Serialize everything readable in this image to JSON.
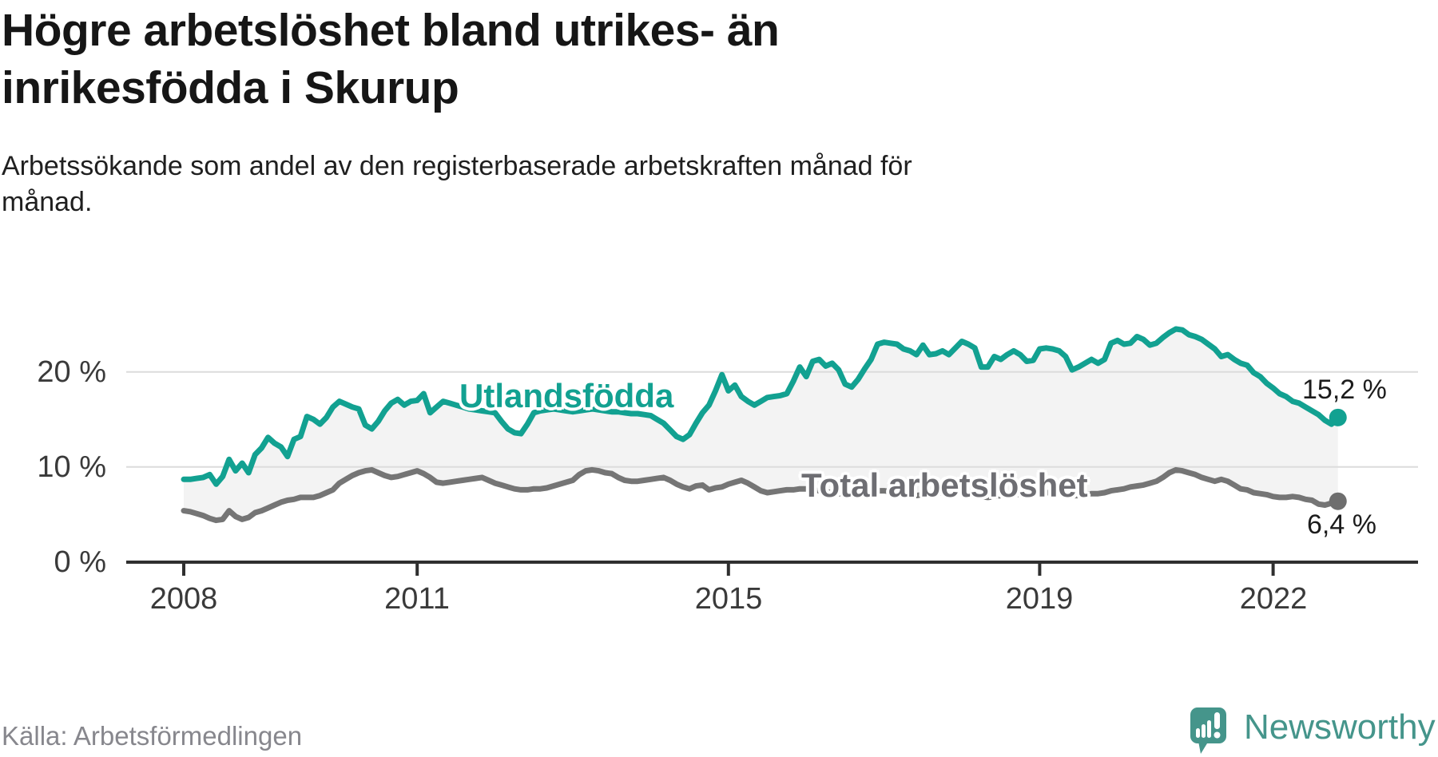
{
  "header": {
    "title_line1": "Högre arbetslöshet bland utrikes- än",
    "title_line2": "inrikesfödda i Skurup",
    "subtitle_line1": "Arbetssökande som andel av den registerbaserade arbetskraften månad för",
    "subtitle_line2": "månad."
  },
  "chart_data": {
    "type": "line",
    "title": "Högre arbetslöshet bland utrikes- än inrikesfödda i Skurup",
    "subtitle": "Arbetssökande som andel av den registerbaserade arbetskraften månad för månad.",
    "x_unit": "month",
    "x_start": "2008-01",
    "x_end": "2022-11",
    "ylim": [
      0,
      26
    ],
    "grid": "horizontal",
    "legend_position": "inline-labels",
    "fill_between_series": true,
    "y_tick_labels": [
      "20 %",
      "10 %",
      "0 %"
    ],
    "y_tick_values": [
      20,
      10,
      0
    ],
    "x_tick_labels": [
      "2008",
      "2011",
      "2015",
      "2019",
      "2022"
    ],
    "x_tick_years": [
      2008,
      2011,
      2015,
      2019,
      2022
    ],
    "series": [
      {
        "name": "Utlandsfödda",
        "color": "#12a191",
        "end_label": "15,2 %",
        "end_value": 15.2,
        "values": [
          8.7,
          8.7,
          8.8,
          8.9,
          9.2,
          8.2,
          9.0,
          10.8,
          9.6,
          10.4,
          9.4,
          11.3,
          12.0,
          13.1,
          12.5,
          12.1,
          11.1,
          12.9,
          13.2,
          15.3,
          15.0,
          14.5,
          15.2,
          16.3,
          16.9,
          16.6,
          16.3,
          16.1,
          14.4,
          14.0,
          14.8,
          15.9,
          16.7,
          17.1,
          16.5,
          16.9,
          17.0,
          17.7,
          15.7,
          16.3,
          16.9,
          16.7,
          16.5,
          16.3,
          16.1,
          16.0,
          15.9,
          15.8,
          15.7,
          14.8,
          14.0,
          13.6,
          13.5,
          14.5,
          15.7,
          15.9,
          16.0,
          16.1,
          16.0,
          15.9,
          15.8,
          15.9,
          16.0,
          16.1,
          16.0,
          15.9,
          15.8,
          15.8,
          15.7,
          15.6,
          15.6,
          15.5,
          15.4,
          15.0,
          14.6,
          13.9,
          13.2,
          12.9,
          13.4,
          14.6,
          15.7,
          16.5,
          18.0,
          19.7,
          18.0,
          18.6,
          17.4,
          16.9,
          16.5,
          16.9,
          17.3,
          17.4,
          17.5,
          17.7,
          19.0,
          20.5,
          19.5,
          21.1,
          21.3,
          20.6,
          20.9,
          20.2,
          18.7,
          18.4,
          19.2,
          20.3,
          21.3,
          22.9,
          23.1,
          23.0,
          22.9,
          22.4,
          22.2,
          21.8,
          22.8,
          21.8,
          21.9,
          22.2,
          21.8,
          22.5,
          23.2,
          22.9,
          22.5,
          20.5,
          20.5,
          21.6,
          21.3,
          21.8,
          22.2,
          21.8,
          21.1,
          21.2,
          22.4,
          22.5,
          22.4,
          22.2,
          21.6,
          20.2,
          20.5,
          20.9,
          21.3,
          20.9,
          21.3,
          23.0,
          23.3,
          22.9,
          23.0,
          23.7,
          23.4,
          22.8,
          23.0,
          23.6,
          24.1,
          24.5,
          24.4,
          23.9,
          23.7,
          23.4,
          22.9,
          22.4,
          21.6,
          21.8,
          21.3,
          20.9,
          20.7,
          19.9,
          19.5,
          18.8,
          18.3,
          17.7,
          17.4,
          16.9,
          16.7,
          16.3,
          15.9,
          15.5,
          14.9,
          14.5,
          15.2
        ]
      },
      {
        "name": "Total arbetslöshet",
        "color": "#757575",
        "end_label": "6,4 %",
        "end_value": 6.4,
        "values": [
          5.4,
          5.3,
          5.1,
          4.9,
          4.6,
          4.4,
          4.5,
          5.4,
          4.8,
          4.5,
          4.7,
          5.2,
          5.4,
          5.7,
          6.0,
          6.3,
          6.5,
          6.6,
          6.8,
          6.8,
          6.8,
          7.0,
          7.3,
          7.6,
          8.3,
          8.7,
          9.1,
          9.4,
          9.6,
          9.7,
          9.4,
          9.1,
          8.9,
          9.0,
          9.2,
          9.4,
          9.6,
          9.3,
          8.9,
          8.4,
          8.3,
          8.4,
          8.5,
          8.6,
          8.7,
          8.8,
          8.9,
          8.6,
          8.3,
          8.1,
          7.9,
          7.7,
          7.6,
          7.6,
          7.7,
          7.7,
          7.8,
          8.0,
          8.2,
          8.4,
          8.6,
          9.2,
          9.6,
          9.7,
          9.6,
          9.4,
          9.3,
          8.9,
          8.6,
          8.5,
          8.5,
          8.6,
          8.7,
          8.8,
          8.9,
          8.6,
          8.2,
          7.9,
          7.7,
          8.0,
          8.1,
          7.6,
          7.8,
          7.9,
          8.2,
          8.4,
          8.6,
          8.3,
          7.9,
          7.5,
          7.3,
          7.4,
          7.5,
          7.6,
          7.6,
          7.7,
          7.7,
          7.6,
          7.5,
          7.4,
          7.3,
          7.2,
          7.1,
          7.2,
          7.3,
          7.4,
          7.4,
          7.5,
          7.5,
          7.4,
          7.3,
          7.2,
          7.1,
          7.0,
          7.1,
          7.2,
          7.2,
          7.3,
          7.3,
          7.4,
          7.4,
          7.3,
          7.1,
          6.9,
          6.8,
          6.9,
          7.0,
          7.1,
          7.2,
          7.1,
          7.0,
          7.1,
          7.2,
          7.3,
          7.3,
          7.2,
          7.1,
          7.0,
          7.0,
          7.1,
          7.2,
          7.2,
          7.3,
          7.5,
          7.6,
          7.7,
          7.9,
          8.0,
          8.1,
          8.3,
          8.5,
          8.9,
          9.4,
          9.7,
          9.6,
          9.4,
          9.2,
          8.9,
          8.7,
          8.5,
          8.7,
          8.5,
          8.1,
          7.7,
          7.6,
          7.3,
          7.2,
          7.1,
          6.9,
          6.8,
          6.8,
          6.9,
          6.8,
          6.6,
          6.5,
          6.1,
          6.0,
          6.2,
          6.4
        ]
      }
    ]
  },
  "colors": {
    "grid": "#dcdcdc",
    "axis": "#2f2f2f",
    "fill_between": "#f3f3f3",
    "series1": "#12a191",
    "series2": "#757575",
    "series2_label": "#6e6e73",
    "brand": "#45958b"
  },
  "footer": {
    "source": "Källa: Arbetsförmedlingen",
    "brand": "Newsworthy"
  }
}
